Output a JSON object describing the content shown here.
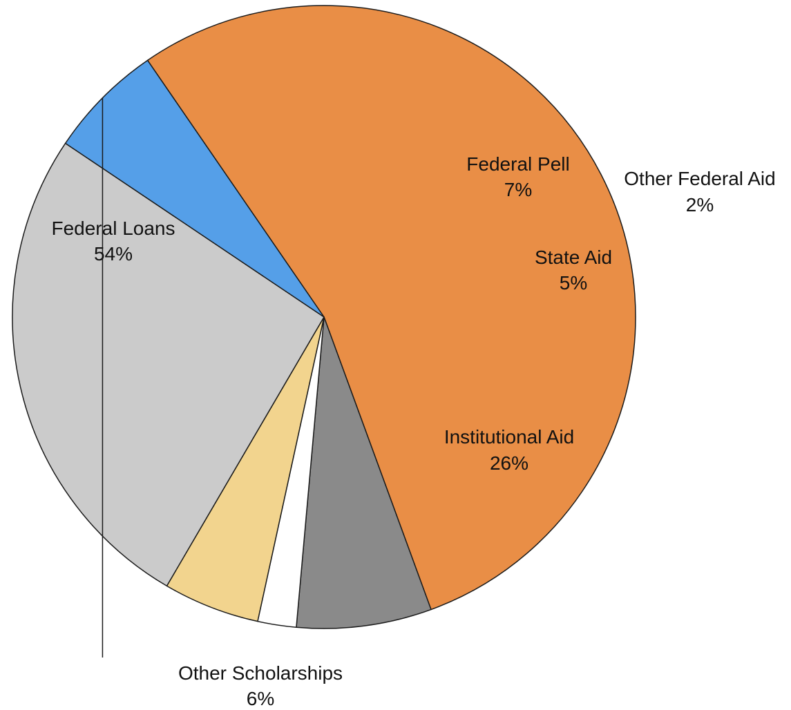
{
  "chart_data": {
    "type": "pie",
    "title": "",
    "unit": "%",
    "slices": [
      {
        "label": "Federal Loans",
        "value": 54,
        "value_label": "54%",
        "color": "#E98E46"
      },
      {
        "label": "Federal Pell",
        "value": 7,
        "value_label": "7%",
        "color": "#8A8A8A"
      },
      {
        "label": "Other Federal Aid",
        "value": 2,
        "value_label": "2%",
        "color": "#FFFFFF"
      },
      {
        "label": "State Aid",
        "value": 5,
        "value_label": "5%",
        "color": "#F2D48E"
      },
      {
        "label": "Institutional Aid",
        "value": 26,
        "value_label": "26%",
        "color": "#CBCBCB"
      },
      {
        "label": "Other Scholarships",
        "value": 6,
        "value_label": "6%",
        "color": "#559FE8"
      }
    ],
    "label_placement": {
      "Federal Loans": "inside",
      "Federal Pell": "inside",
      "Other Federal Aid": "outside",
      "State Aid": "inside",
      "Institutional Aid": "inside",
      "Other Scholarships": "outside-leader"
    },
    "legend": "none"
  }
}
